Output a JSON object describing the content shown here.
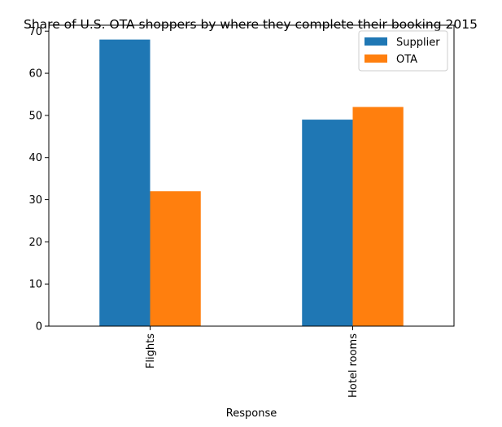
{
  "chart_data": {
    "type": "bar",
    "title": "Share of U.S. OTA shoppers by where they complete their booking 2015",
    "xlabel": "Response",
    "ylabel": "",
    "categories": [
      "Flights",
      "Hotel rooms"
    ],
    "series": [
      {
        "name": "Supplier",
        "color": "#1f77b4",
        "values": [
          68,
          49
        ]
      },
      {
        "name": "OTA",
        "color": "#ff7f0e",
        "values": [
          32,
          52
        ]
      }
    ],
    "ylim": [
      0,
      71.4
    ],
    "yticks": [
      0,
      10,
      20,
      30,
      40,
      50,
      60,
      70
    ],
    "grid": false,
    "legend_position": "top-right"
  }
}
